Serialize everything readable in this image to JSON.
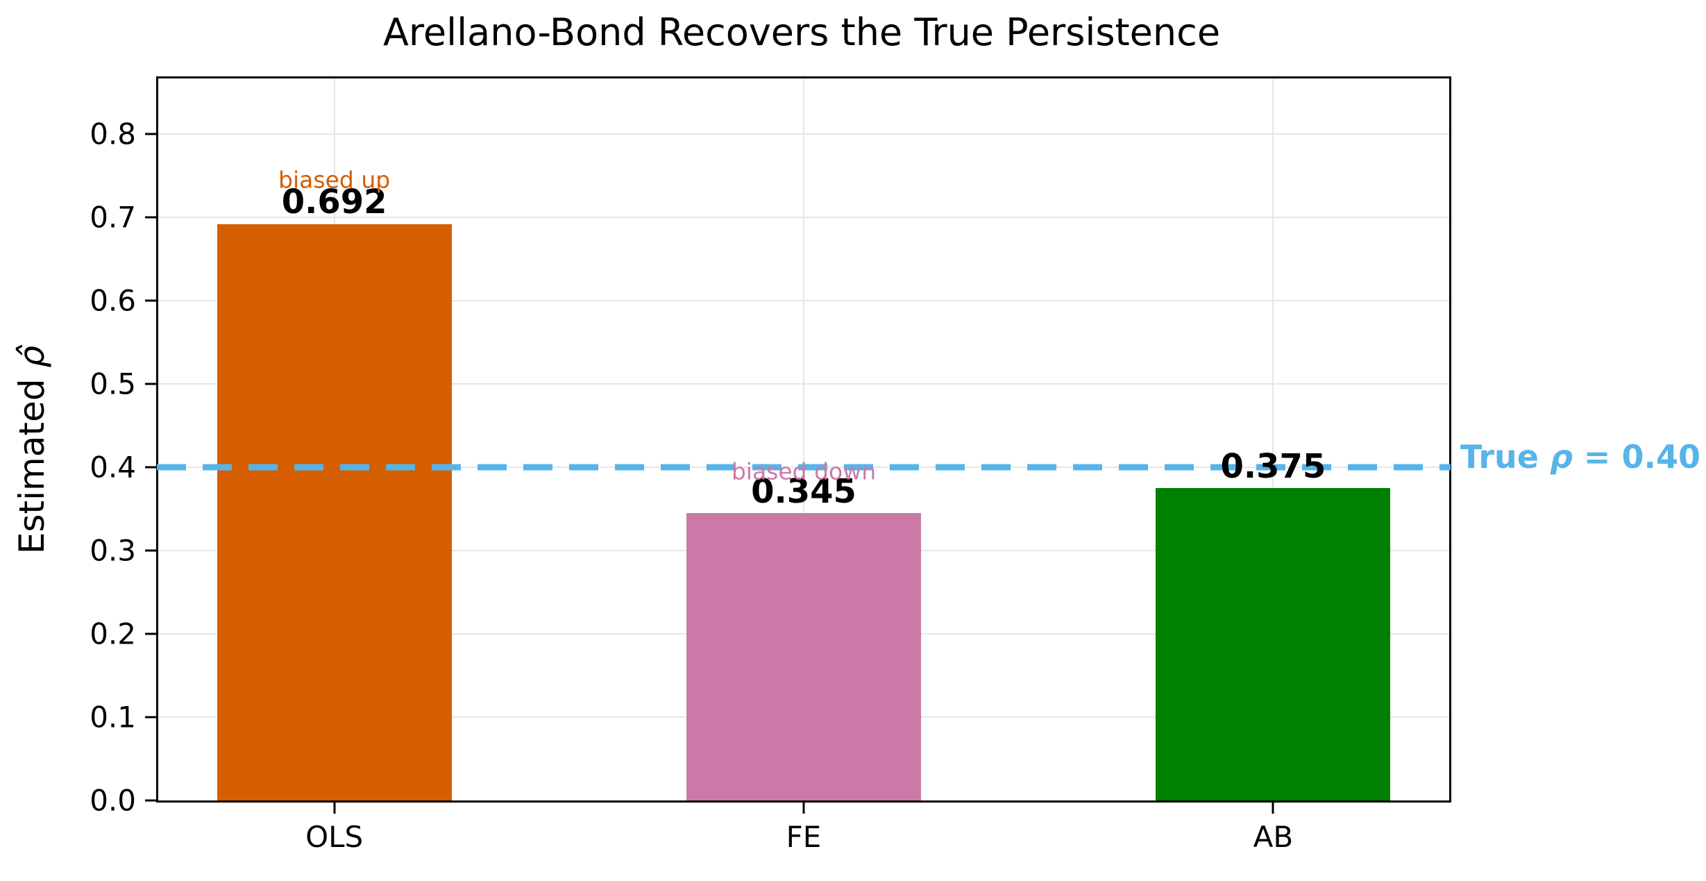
{
  "chart_data": {
    "type": "bar",
    "title": "Arellano-Bond Recovers the True Persistence",
    "ylabel": "Estimated ρ̂",
    "ylabel_parts": {
      "prefix": "Estimated ",
      "symbol": "ρ̂"
    },
    "xlabel": "",
    "categories": [
      "OLS",
      "FE",
      "AB"
    ],
    "values": [
      0.692,
      0.345,
      0.375
    ],
    "value_labels": [
      "0.692",
      "0.345",
      "0.375"
    ],
    "bar_colors": [
      "#D55E00",
      "#CC79A7",
      "#008000"
    ],
    "ylim": [
      0,
      0.8667
    ],
    "yticks": [
      0.0,
      0.1,
      0.2,
      0.3,
      0.4,
      0.5,
      0.6,
      0.7,
      0.8
    ],
    "ytick_labels": [
      "0.0",
      "0.1",
      "0.2",
      "0.3",
      "0.4",
      "0.5",
      "0.6",
      "0.7",
      "0.8"
    ],
    "grid": true,
    "legend": "none",
    "annotations": [
      {
        "text": "biased up",
        "x_index": 0,
        "y": 0.745,
        "color": "#D55E00"
      },
      {
        "text": "biased down",
        "x_index": 1,
        "y": 0.395,
        "color": "#CC79A7"
      }
    ],
    "reference_line": {
      "y": 0.4,
      "style": "dashed",
      "color": "#56B4E9",
      "label": "True ρ = 0.40",
      "label_prefix": "True ",
      "label_symbol": "ρ",
      "label_suffix": " = 0.40"
    }
  },
  "colors": {
    "grid": "#E6E6E6",
    "axis": "#000000",
    "background": "#FFFFFF",
    "text": "#000000"
  }
}
